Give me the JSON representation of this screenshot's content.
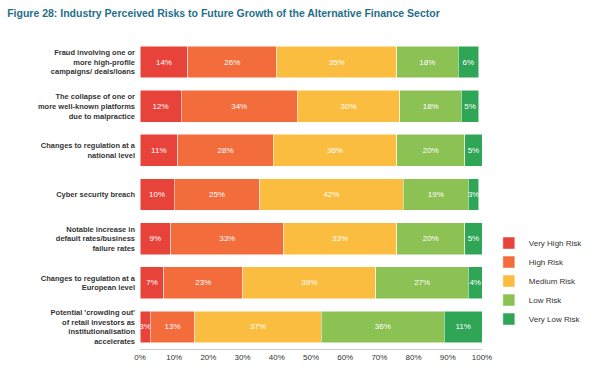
{
  "chart_data": {
    "type": "bar",
    "orientation": "horizontal",
    "stacked": true,
    "title": "Figure 28: Industry Perceived Risks to Future Growth of the Alternative Finance Sector",
    "categories": [
      "Fraud involving one or more high-profile campaigns/ deals/loans",
      "The collapse of one or more well-known platforms due to malpractice",
      "Changes to regulation at a national level",
      "Cyber security breach",
      "Notable increase in default rates/business failure rates",
      "Changes to regulation at a European level",
      "Potential 'crowding out' of retail investors as institutionalisation accelerates"
    ],
    "series": [
      {
        "name": "Very High Risk",
        "color": "#e8433b",
        "values": [
          14,
          12,
          11,
          10,
          9,
          7,
          3
        ],
        "value_labels": [
          "14%",
          "12%",
          "11%",
          "10%",
          "9%",
          "7%",
          "3%"
        ]
      },
      {
        "name": "High Risk",
        "color": "#f26c3c",
        "values": [
          26,
          34,
          28,
          25,
          33,
          23,
          13
        ],
        "value_labels": [
          "26%",
          "34%",
          "28%",
          "25%",
          "33%",
          "23%",
          "13%"
        ]
      },
      {
        "name": "Medium Risk",
        "color": "#fbbd40",
        "values": [
          35,
          30,
          36,
          42,
          33,
          39,
          37
        ],
        "value_labels": [
          "35%",
          "30%",
          "36%",
          "42%",
          "33%",
          "39%",
          "37%"
        ]
      },
      {
        "name": "Low Risk",
        "color": "#8cc153",
        "values": [
          18,
          18,
          20,
          19,
          20,
          27,
          36
        ],
        "value_labels": [
          "18%",
          "18%",
          "20%",
          "19%",
          "20%",
          "27%",
          "36%"
        ]
      },
      {
        "name": "Very Low Risk",
        "color": "#2fa656",
        "values": [
          6,
          5,
          5,
          3,
          5,
          4,
          11
        ],
        "value_labels": [
          "6%",
          "5%",
          "5%",
          "3%",
          "5%",
          "4%",
          "11%"
        ]
      }
    ],
    "xlim": [
      0,
      100
    ],
    "xticks": [
      {
        "value": 0,
        "label": "0%"
      },
      {
        "value": 10,
        "label": "10%"
      },
      {
        "value": 20,
        "label": "20%"
      },
      {
        "value": 30,
        "label": "30%"
      },
      {
        "value": 40,
        "label": "40%"
      },
      {
        "value": 50,
        "label": "50%"
      },
      {
        "value": 60,
        "label": "60%"
      },
      {
        "value": 70,
        "label": "70%"
      },
      {
        "value": 80,
        "label": "80%"
      },
      {
        "value": 90,
        "label": "90%"
      },
      {
        "value": 100,
        "label": "100%"
      }
    ],
    "data_labels": true,
    "grid": false,
    "legend": "right"
  }
}
